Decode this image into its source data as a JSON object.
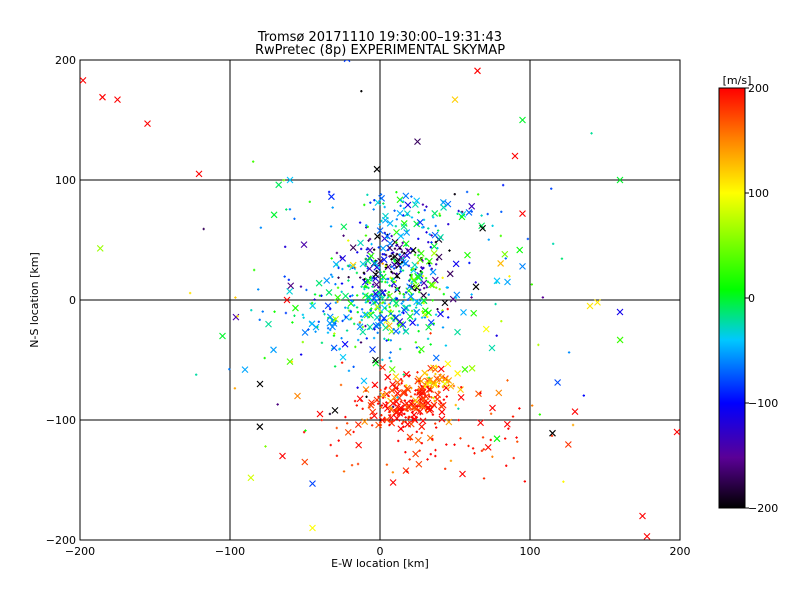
{
  "chart_data": {
    "type": "scatter",
    "title": "Tromsø 20171110 19:30:00–19:31:43",
    "subtitle": "RwPretec (8p) EXPERIMENTAL SKYMAP",
    "xlabel": "E-W location [km]",
    "ylabel": "N-S location [km]",
    "xlim": [
      -200,
      200
    ],
    "ylim": [
      -200,
      200
    ],
    "xticks": [
      -200,
      -100,
      0,
      100,
      200
    ],
    "yticks": [
      -200,
      -100,
      0,
      100,
      200
    ],
    "x_tick_labels": [
      "−200",
      "−100",
      "0",
      "100",
      "200"
    ],
    "y_tick_labels": [
      "−200",
      "−100",
      "0",
      "100",
      "200"
    ],
    "grid": true,
    "colorbar": {
      "label": "[m/s]",
      "range": [
        -200,
        200
      ],
      "ticks": [
        200,
        100,
        0,
        -100,
        -200
      ],
      "tick_labels": [
        "200",
        "100",
        "0",
        "−100",
        "−200"
      ],
      "colormap": [
        "#000000",
        "#5a0096",
        "#0000ff",
        "#00c8ff",
        "#00ff00",
        "#ffff00",
        "#ff8000",
        "#ff0000"
      ]
    },
    "clusters": [
      {
        "cx": 12,
        "cy": 30,
        "sx": 18,
        "sy": 14,
        "n": 170,
        "v": -150,
        "vs": 55,
        "cross": 0.35
      },
      {
        "cx": 5,
        "cy": 5,
        "sx": 22,
        "sy": 22,
        "n": 220,
        "v": 0,
        "vs": 45,
        "cross": 0.3
      },
      {
        "cx": -10,
        "cy": -15,
        "sx": 32,
        "sy": 18,
        "n": 150,
        "v": -50,
        "vs": 35,
        "cross": 0.25
      },
      {
        "cx": 20,
        "cy": 70,
        "sx": 38,
        "sy": 12,
        "n": 90,
        "v": -50,
        "vs": 40,
        "cross": 0.3
      },
      {
        "cx": 18,
        "cy": -85,
        "sx": 14,
        "sy": 12,
        "n": 200,
        "v": 190,
        "vs": 25,
        "cross": 0.45
      },
      {
        "cx": 32,
        "cy": -70,
        "sx": 10,
        "sy": 8,
        "n": 50,
        "v": 130,
        "vs": 25,
        "cross": 0.4
      },
      {
        "cx": 35,
        "cy": -115,
        "sx": 45,
        "sy": 20,
        "n": 80,
        "v": 190,
        "vs": 20,
        "cross": 0.2
      },
      {
        "cx": 20,
        "cy": 0,
        "sx": 90,
        "sy": 80,
        "n": 110,
        "v": 0,
        "vs": 120,
        "cross": 0.35
      }
    ],
    "outliers": [
      {
        "x": -198,
        "y": 183,
        "v": 200
      },
      {
        "x": -185,
        "y": 169,
        "v": 200
      },
      {
        "x": -175,
        "y": 167,
        "v": 200
      },
      {
        "x": -155,
        "y": 147,
        "v": 200
      },
      {
        "x": 65,
        "y": 191,
        "v": 200
      },
      {
        "x": 50,
        "y": 167,
        "v": 120
      },
      {
        "x": 25,
        "y": 132,
        "v": -170
      },
      {
        "x": -2,
        "y": 109,
        "v": -200
      },
      {
        "x": 95,
        "y": 72,
        "v": 200
      },
      {
        "x": 140,
        "y": -5,
        "v": 110
      },
      {
        "x": 145,
        "y": -2,
        "v": 110
      },
      {
        "x": 160,
        "y": -10,
        "v": -110
      },
      {
        "x": 115,
        "y": -111,
        "v": -200
      },
      {
        "x": -90,
        "y": -58,
        "v": -50
      },
      {
        "x": -45,
        "y": -153,
        "v": -80
      },
      {
        "x": 95,
        "y": 28,
        "v": -60
      },
      {
        "x": 85,
        "y": 15,
        "v": -50
      },
      {
        "x": 78,
        "y": 16,
        "v": -40
      },
      {
        "x": 64,
        "y": 11,
        "v": -200
      },
      {
        "x": -62,
        "y": 0,
        "v": 200
      },
      {
        "x": -55,
        "y": -80,
        "v": 150
      },
      {
        "x": -40,
        "y": -95,
        "v": 200
      },
      {
        "x": -30,
        "y": -92,
        "v": -200
      },
      {
        "x": 90,
        "y": 120,
        "v": 200
      },
      {
        "x": 95,
        "y": 150,
        "v": 0
      },
      {
        "x": 175,
        "y": -180,
        "v": 200
      },
      {
        "x": 178,
        "y": -197,
        "v": 200
      },
      {
        "x": 130,
        "y": -93,
        "v": 200
      },
      {
        "x": -105,
        "y": -30,
        "v": 0
      },
      {
        "x": 160,
        "y": 100,
        "v": 0
      },
      {
        "x": 198,
        "y": -110,
        "v": 200
      },
      {
        "x": -60,
        "y": 100,
        "v": -40
      },
      {
        "x": -45,
        "y": -190,
        "v": 100
      },
      {
        "x": 75,
        "y": -90,
        "v": 200
      },
      {
        "x": 55,
        "y": -145,
        "v": 200
      },
      {
        "x": -65,
        "y": -130,
        "v": 200
      },
      {
        "x": -80,
        "y": -70,
        "v": -200
      }
    ]
  }
}
